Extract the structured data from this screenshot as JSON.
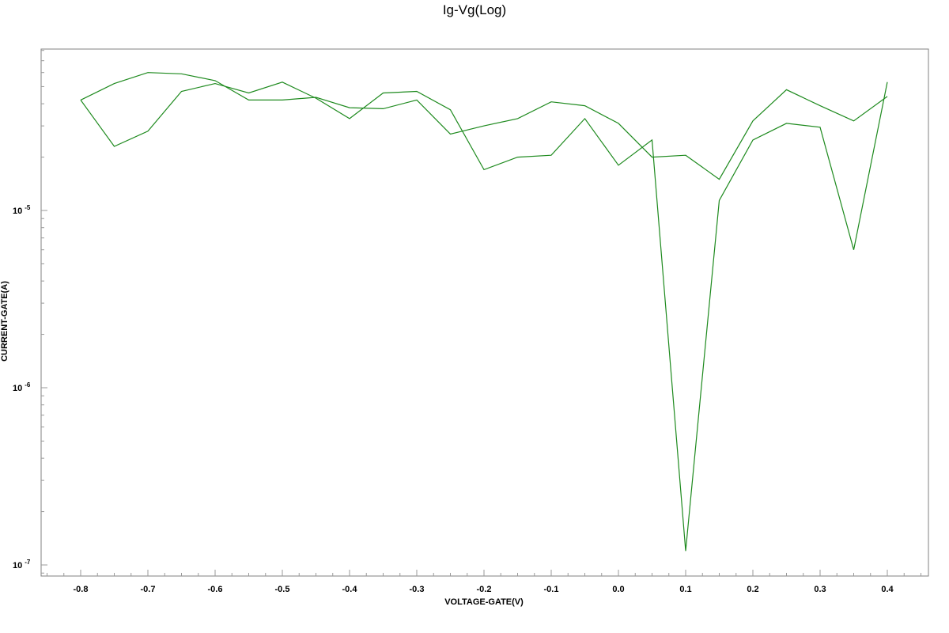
{
  "chart_data": {
    "type": "line",
    "title": "Ig-Vg(Log)",
    "xlabel": "VOLTAGE-GATE(V)",
    "ylabel": "CURRENT-GATE(A)",
    "yscale": "log",
    "xlim": [
      -0.86,
      0.46
    ],
    "ylim": [
      9e-08,
      4.6e-05
    ],
    "grid": false,
    "x_tick_labels": [
      "-0.8",
      "-0.7",
      "-0.6",
      "-0.5",
      "-0.4",
      "-0.3",
      "-0.2",
      "-0.1",
      "0.0",
      "0.1",
      "0.2",
      "0.3",
      "0.4"
    ],
    "y_tick_labels": [
      {
        "base": "10",
        "exp": "-5"
      },
      {
        "base": "10",
        "exp": "-6"
      },
      {
        "base": "10",
        "exp": "-7"
      }
    ],
    "color": "#1e8a1e",
    "series": [
      {
        "x": [
          -0.8,
          -0.75,
          -0.7,
          -0.65,
          -0.6,
          -0.55,
          -0.5,
          -0.45,
          -0.4,
          -0.35,
          -0.3,
          -0.25,
          -0.2,
          -0.15,
          -0.1,
          -0.05,
          0.0,
          0.05,
          0.1,
          0.15,
          0.2,
          0.25,
          0.3,
          0.35,
          0.4
        ],
        "y": [
          4.2e-05,
          2.3e-05,
          2.8e-05,
          4.7e-05,
          5.2e-05,
          4.6e-05,
          5.3e-05,
          4.3e-05,
          3.3e-05,
          4.6e-05,
          4.7e-05,
          3.7e-05,
          1.7e-05,
          2e-05,
          2.05e-05,
          3.3e-05,
          1.8e-05,
          2.5e-05,
          1.2e-07,
          1.14e-05,
          2.5e-05,
          3.1e-05,
          2.95e-05,
          6e-06,
          5.3e-05
        ]
      },
      {
        "x": [
          -0.8,
          -0.75,
          -0.7,
          -0.65,
          -0.6,
          -0.55,
          -0.5,
          -0.45,
          -0.4,
          -0.35,
          -0.3,
          -0.25,
          -0.2,
          -0.15,
          -0.1,
          -0.05,
          0.0,
          0.05,
          0.1,
          0.15,
          0.2,
          0.25,
          0.3,
          0.35,
          0.4
        ],
        "y": [
          4.2e-05,
          5.2e-05,
          6e-05,
          5.9e-05,
          5.4e-05,
          4.2e-05,
          4.2e-05,
          4.35e-05,
          3.8e-05,
          3.75e-05,
          4.2e-05,
          2.7e-05,
          3e-05,
          3.3e-05,
          4.1e-05,
          3.9e-05,
          3.1e-05,
          2e-05,
          2.05e-05,
          1.5e-05,
          3.2e-05,
          4.8e-05,
          3.9e-05,
          3.2e-05,
          4.4e-05
        ]
      }
    ]
  }
}
